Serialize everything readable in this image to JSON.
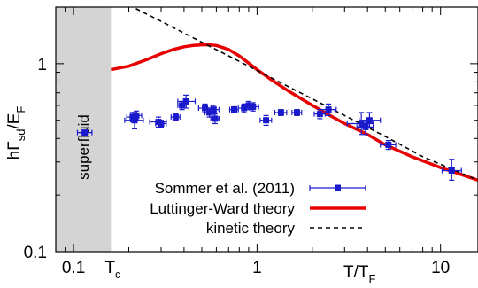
{
  "chart_data": {
    "type": "scatter",
    "x_scale": "log",
    "y_scale": "log",
    "xlim": [
      0.08,
      16
    ],
    "ylim": [
      0.1,
      2
    ],
    "xlabel": {
      "main": "T/T",
      "sub": "F"
    },
    "ylabel": {
      "main": "hΓ",
      "sub1": "sd",
      "mid": "/E",
      "sub2": "F"
    },
    "x_ticks": [
      {
        "value": 0.1,
        "label": "0.1"
      },
      {
        "value": 1,
        "label": "1"
      },
      {
        "value": 10,
        "label": "10"
      }
    ],
    "x_special_tick": {
      "value": 0.16,
      "main": "T",
      "sub": "c"
    },
    "y_ticks": [
      {
        "value": 0.1,
        "label": "0.1"
      },
      {
        "value": 1,
        "label": "1"
      }
    ],
    "shaded_region": {
      "x_from": 0.08,
      "x_to": 0.16,
      "label": "superfluid",
      "color": "#d4d4d4"
    },
    "series": [
      {
        "name": "Sommer et al. (2011)",
        "kind": "errorbar",
        "color": "#1a1acc",
        "points": [
          {
            "x": 0.115,
            "y": 0.43,
            "xerr": [
              0.105,
              0.126
            ],
            "yerr": [
              0.42,
              0.44
            ]
          },
          {
            "x": 0.21,
            "y": 0.52,
            "xerr": [
              0.195,
              0.225
            ],
            "yerr": [
              0.49,
              0.55
            ]
          },
          {
            "x": 0.215,
            "y": 0.5,
            "xerr": [
              0.19,
              0.24
            ],
            "yerr": [
              0.45,
              0.55
            ]
          },
          {
            "x": 0.22,
            "y": 0.53,
            "xerr": [
              0.205,
              0.235
            ],
            "yerr": [
              0.5,
              0.56
            ]
          },
          {
            "x": 0.29,
            "y": 0.49,
            "xerr": [
              0.26,
              0.32
            ],
            "yerr": [
              0.46,
              0.52
            ]
          },
          {
            "x": 0.3,
            "y": 0.48,
            "xerr": [
              0.28,
              0.32
            ],
            "yerr": [
              0.46,
              0.5
            ]
          },
          {
            "x": 0.36,
            "y": 0.52,
            "xerr": [
              0.34,
              0.38
            ],
            "yerr": [
              0.5,
              0.54
            ]
          },
          {
            "x": 0.39,
            "y": 0.6,
            "xerr": [
              0.37,
              0.41
            ],
            "yerr": [
              0.57,
              0.63
            ]
          },
          {
            "x": 0.41,
            "y": 0.63,
            "xerr": [
              0.37,
              0.46
            ],
            "yerr": [
              0.58,
              0.68
            ]
          },
          {
            "x": 0.52,
            "y": 0.58,
            "xerr": [
              0.48,
              0.56
            ],
            "yerr": [
              0.55,
              0.61
            ]
          },
          {
            "x": 0.55,
            "y": 0.55,
            "xerr": [
              0.52,
              0.58
            ],
            "yerr": [
              0.52,
              0.58
            ]
          },
          {
            "x": 0.58,
            "y": 0.57,
            "xerr": [
              0.54,
              0.62
            ],
            "yerr": [
              0.54,
              0.6
            ]
          },
          {
            "x": 0.59,
            "y": 0.51,
            "xerr": [
              0.56,
              0.62
            ],
            "yerr": [
              0.48,
              0.54
            ]
          },
          {
            "x": 0.75,
            "y": 0.57,
            "xerr": [
              0.71,
              0.79
            ],
            "yerr": [
              0.55,
              0.59
            ]
          },
          {
            "x": 0.85,
            "y": 0.58,
            "xerr": [
              0.79,
              0.91
            ],
            "yerr": [
              0.55,
              0.61
            ]
          },
          {
            "x": 0.9,
            "y": 0.6,
            "xerr": [
              0.84,
              0.96
            ],
            "yerr": [
              0.57,
              0.63
            ]
          },
          {
            "x": 0.95,
            "y": 0.59,
            "xerr": [
              0.88,
              1.02
            ],
            "yerr": [
              0.56,
              0.62
            ]
          },
          {
            "x": 1.12,
            "y": 0.5,
            "xerr": [
              1.04,
              1.2
            ],
            "yerr": [
              0.47,
              0.53
            ]
          },
          {
            "x": 1.35,
            "y": 0.55,
            "xerr": [
              1.25,
              1.45
            ],
            "yerr": [
              0.53,
              0.57
            ]
          },
          {
            "x": 1.65,
            "y": 0.55,
            "xerr": [
              1.55,
              1.75
            ],
            "yerr": [
              0.53,
              0.57
            ]
          },
          {
            "x": 2.2,
            "y": 0.54,
            "xerr": [
              2.05,
              2.35
            ],
            "yerr": [
              0.51,
              0.57
            ]
          },
          {
            "x": 2.45,
            "y": 0.57,
            "xerr": [
              2.2,
              2.7
            ],
            "yerr": [
              0.53,
              0.61
            ]
          },
          {
            "x": 3.7,
            "y": 0.48,
            "xerr": [
              3.1,
              4.3
            ],
            "yerr": [
              0.42,
              0.55
            ]
          },
          {
            "x": 3.9,
            "y": 0.46,
            "xerr": [
              3.5,
              4.3
            ],
            "yerr": [
              0.42,
              0.5
            ]
          },
          {
            "x": 4.1,
            "y": 0.5,
            "xerr": [
              3.6,
              4.7
            ],
            "yerr": [
              0.46,
              0.55
            ]
          },
          {
            "x": 5.2,
            "y": 0.37,
            "xerr": [
              4.7,
              5.7
            ],
            "yerr": [
              0.35,
              0.39
            ]
          },
          {
            "x": 11.5,
            "y": 0.27,
            "xerr": [
              10.2,
              13.0
            ],
            "yerr": [
              0.24,
              0.31
            ]
          }
        ]
      },
      {
        "name": "Luttinger-Ward theory",
        "kind": "line",
        "color": "#e80000",
        "x": [
          0.16,
          0.2,
          0.25,
          0.3,
          0.35,
          0.4,
          0.45,
          0.5,
          0.55,
          0.6,
          0.7,
          0.8,
          1.0,
          1.2,
          1.5,
          2.0,
          2.5,
          3.0,
          4.0,
          5.0,
          7.0,
          10.0,
          16.0
        ],
        "y": [
          0.93,
          0.97,
          1.05,
          1.13,
          1.19,
          1.23,
          1.25,
          1.26,
          1.26,
          1.25,
          1.19,
          1.1,
          0.93,
          0.82,
          0.71,
          0.6,
          0.53,
          0.48,
          0.42,
          0.37,
          0.32,
          0.28,
          0.24
        ]
      },
      {
        "name": "kinetic theory",
        "kind": "dashed-line",
        "color": "#000000",
        "x": [
          0.2,
          0.3,
          0.5,
          0.7,
          1.0,
          1.5,
          2.0,
          3.0,
          5.0,
          8.0,
          12.0,
          16.0
        ],
        "y": [
          2.05,
          1.68,
          1.3,
          1.1,
          0.92,
          0.75,
          0.65,
          0.53,
          0.41,
          0.32,
          0.27,
          0.24
        ]
      }
    ],
    "legend": {
      "position": "bottom-left",
      "entries": [
        "Sommer et al. (2011)",
        "Luttinger-Ward theory",
        "kinetic theory"
      ]
    }
  }
}
